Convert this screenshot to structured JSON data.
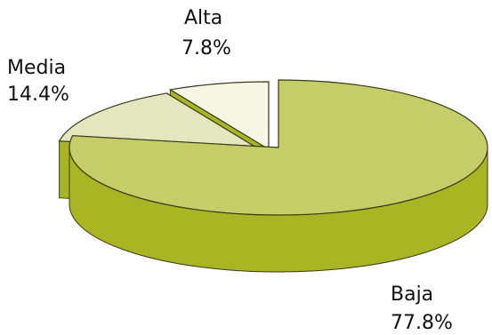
{
  "chart_data": {
    "type": "pie",
    "style": "3d-exploded",
    "slices": [
      {
        "label": "Baja",
        "value": 77.8,
        "value_label": "77.8%",
        "top_color": "#c5cd69",
        "side_color": "#a9b522"
      },
      {
        "label": "Media",
        "value": 14.4,
        "value_label": "14.4%",
        "top_color": "#e3e6bf",
        "side_color": "#a9b522"
      },
      {
        "label": "Alta",
        "value": 7.8,
        "value_label": "7.8%",
        "top_color": "#f5f6e4",
        "side_color": "#a9b522"
      }
    ],
    "outline_color": "#3a3a1a"
  }
}
